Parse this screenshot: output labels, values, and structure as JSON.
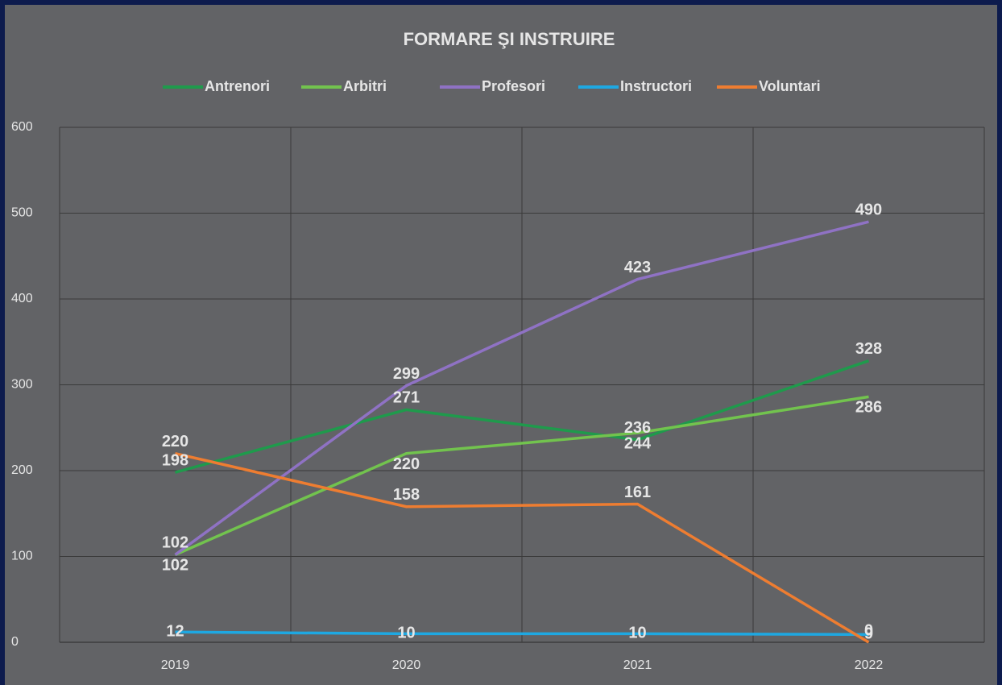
{
  "chart_data": {
    "type": "line",
    "title": "FORMARE ŞI INSTRUIRE",
    "categories": [
      "2019",
      "2020",
      "2021",
      "2022"
    ],
    "series": [
      {
        "name": "Antrenori",
        "color": "#1f9a4c",
        "values": [
          198,
          271,
          236,
          328
        ]
      },
      {
        "name": "Arbitri",
        "color": "#72c34e",
        "values": [
          102,
          220,
          244,
          286
        ]
      },
      {
        "name": "Profesori",
        "color": "#8f72c4",
        "values": [
          102,
          299,
          423,
          490
        ]
      },
      {
        "name": "Instructori",
        "color": "#1ea8e2",
        "values": [
          12,
          10,
          10,
          9
        ]
      },
      {
        "name": "Voluntari",
        "color": "#ee7d31",
        "values": [
          220,
          158,
          161,
          0
        ]
      }
    ],
    "ylim": [
      0,
      600
    ],
    "yticks": [
      0,
      100,
      200,
      300,
      400,
      500,
      600
    ],
    "grid": true,
    "legend": "top"
  }
}
